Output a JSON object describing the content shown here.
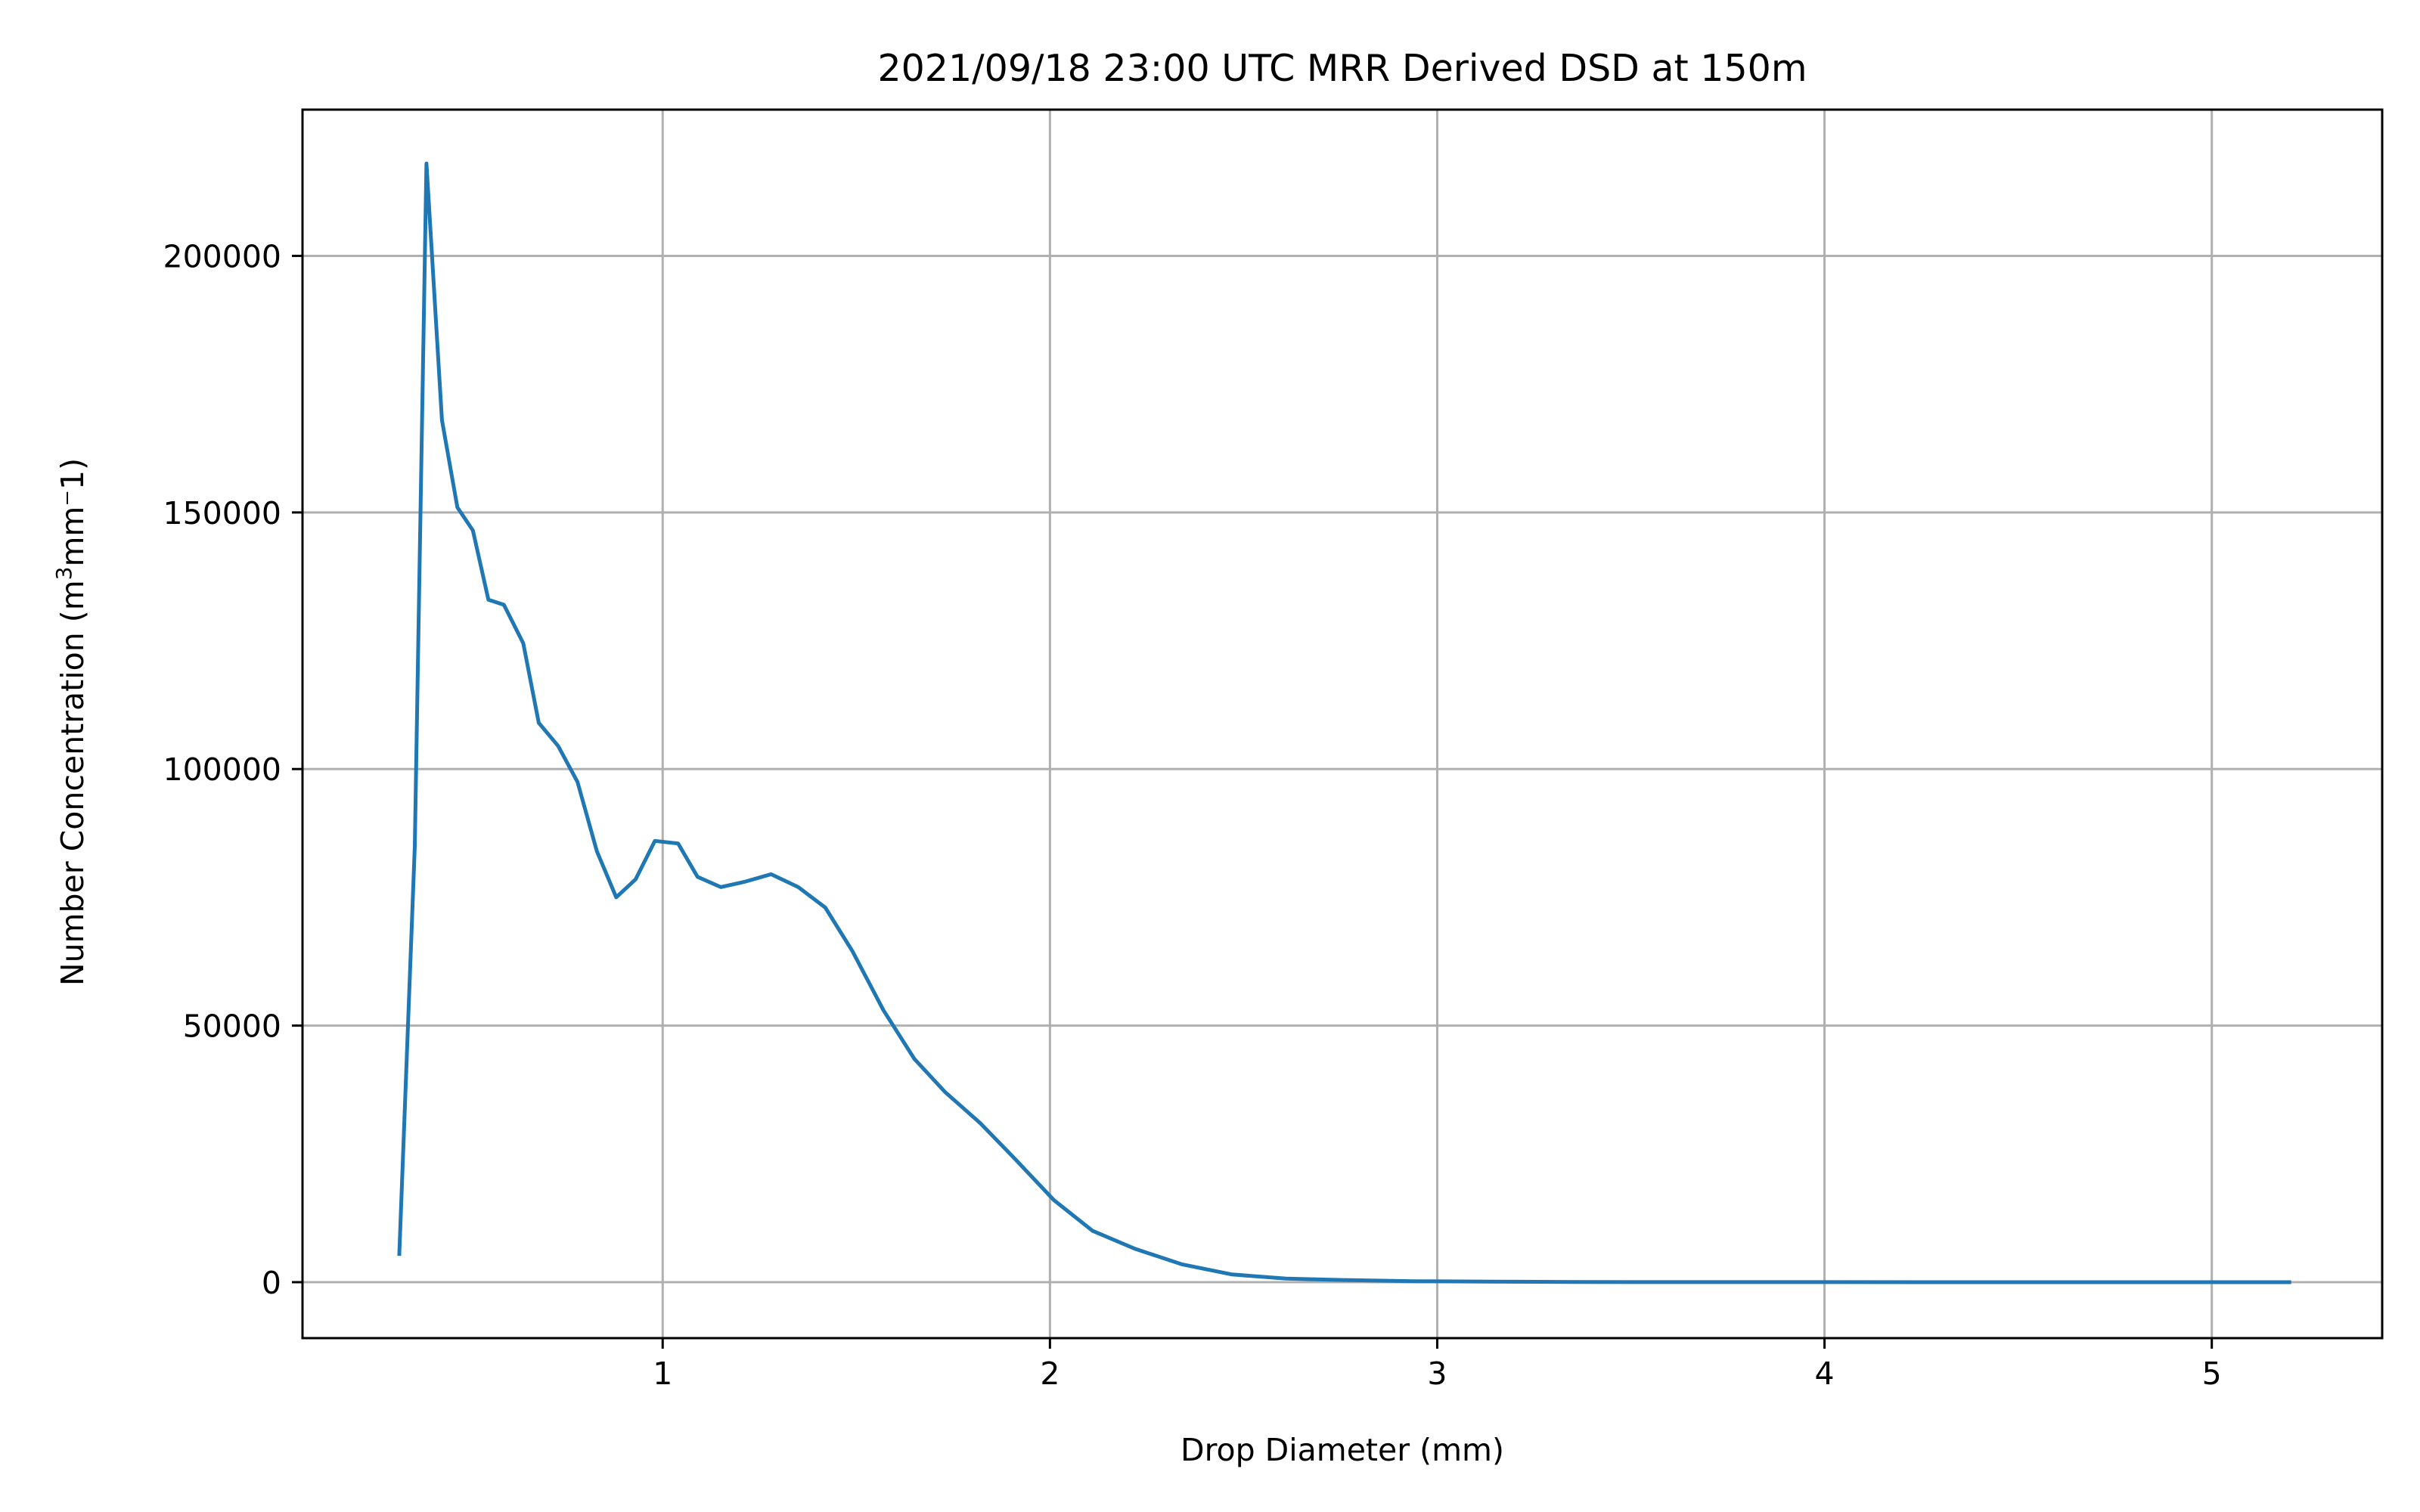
{
  "chart_data": {
    "type": "line",
    "title": "2021/09/18 23:00 UTC MRR Derived DSD at 150m",
    "xlabel": "Drop Diameter (mm)",
    "ylabel_parts": {
      "prefix": "Number Concentration (m",
      "superscript": "3",
      "suffix": "mm⁻1)"
    },
    "xlim": [
      0.07,
      5.44
    ],
    "ylim": [
      -10900,
      228500
    ],
    "xticks": [
      1,
      2,
      3,
      4,
      5
    ],
    "xtick_labels": [
      "1",
      "2",
      "3",
      "4",
      "5"
    ],
    "yticks": [
      0,
      50000,
      100000,
      150000,
      200000
    ],
    "ytick_labels": [
      "0",
      "50000",
      "100000",
      "150000",
      "200000"
    ],
    "grid": true,
    "colors": {
      "series": "#1f77b4",
      "grid": "#b0b0b0",
      "axes": "#000000"
    },
    "series": [
      {
        "x": [
          0.32,
          0.36,
          0.39,
          0.43,
          0.47,
          0.51,
          0.55,
          0.59,
          0.64,
          0.68,
          0.73,
          0.78,
          0.83,
          0.88,
          0.93,
          0.98,
          1.04,
          1.09,
          1.15,
          1.21,
          1.28,
          1.35,
          1.42,
          1.49,
          1.57,
          1.65,
          1.73,
          1.82,
          1.91,
          2.01,
          2.11,
          2.22,
          2.34,
          2.47,
          2.61,
          2.77,
          2.94,
          3.13,
          3.35,
          3.6,
          3.9,
          4.25,
          4.7,
          5.2
        ],
        "y": [
          5500,
          85000,
          218000,
          168000,
          151000,
          146500,
          133000,
          132000,
          124500,
          109000,
          104500,
          97500,
          84000,
          75000,
          78500,
          86000,
          85500,
          79000,
          77000,
          78000,
          79500,
          77000,
          73000,
          64500,
          53000,
          43500,
          37000,
          31000,
          24000,
          16000,
          10000,
          6500,
          3500,
          1500,
          700,
          400,
          200,
          100,
          50,
          20,
          10,
          5,
          2,
          0
        ]
      }
    ]
  }
}
